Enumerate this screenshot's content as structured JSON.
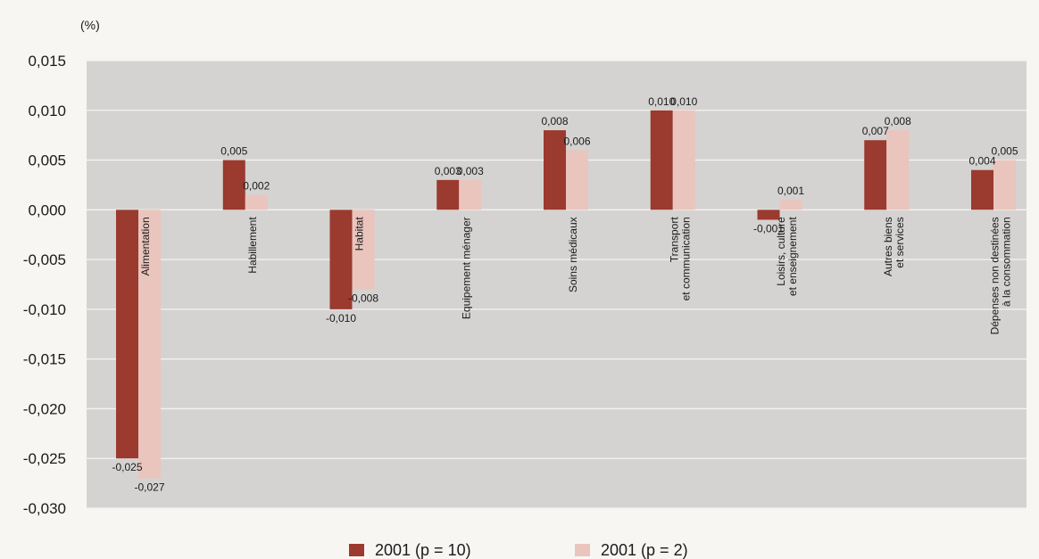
{
  "chart_data": {
    "type": "bar",
    "unit_label": "(%)",
    "categories": [
      [
        "Alimentation"
      ],
      [
        "Habillement"
      ],
      [
        "Habitat"
      ],
      [
        "Equipement ménager"
      ],
      [
        "Soins médicaux"
      ],
      [
        "Transport",
        "et communication"
      ],
      [
        "Loisirs, culture",
        "et enseignement"
      ],
      [
        "Autres biens",
        "et services"
      ],
      [
        "Dépenses non destinées",
        "à la consommation"
      ]
    ],
    "series": [
      {
        "name": "2001 (p = 10)",
        "color": "#9b3a2e",
        "values": [
          -0.025,
          0.005,
          -0.01,
          0.003,
          0.008,
          0.01,
          -0.001,
          0.007,
          0.004
        ],
        "labels": [
          "-0,025",
          "0,005",
          "-0,010",
          "0,003",
          "0,008",
          "0,010",
          "-0,001",
          "0,007",
          "0,004"
        ]
      },
      {
        "name": "2001 (p = 2)",
        "color": "#eac5bd",
        "values": [
          -0.027,
          0.0015,
          -0.008,
          0.003,
          0.006,
          0.01,
          0.001,
          0.008,
          0.005
        ],
        "labels": [
          "-0,027",
          "0,002",
          "-0,008",
          "0,003",
          "0,006",
          "0,010",
          "0,001",
          "0,008",
          "0,005"
        ]
      }
    ],
    "ylim": [
      -0.03,
      0.015
    ],
    "yticks": [
      0.015,
      0.01,
      0.005,
      0.0,
      -0.005,
      -0.01,
      -0.015,
      -0.02,
      -0.025,
      -0.03
    ],
    "ytick_labels": [
      "0,015",
      "0,010",
      "0,005",
      "0,000",
      "-0,005",
      "-0,010",
      "-0,015",
      "-0,020",
      "-0,025",
      "-0,030"
    ],
    "grid": true,
    "legend_position": "bottom-center",
    "plot_background": "#d4d3d1"
  }
}
